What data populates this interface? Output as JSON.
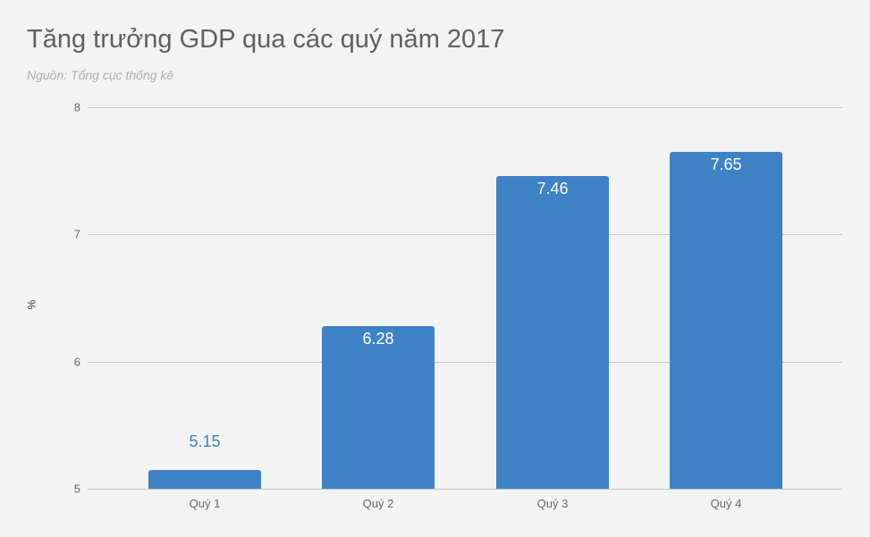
{
  "title": "Tăng trưởng GDP qua các quý năm 2017",
  "subtitle": "Nguồn: Tổng cục thống kê",
  "colors": {
    "bar": "#3d82c4",
    "background": "#f3f3f3",
    "grid": "#c6c6c6"
  },
  "chart_data": {
    "type": "bar",
    "title": "Tăng trưởng GDP qua các quý năm 2017",
    "subtitle": "Nguồn: Tổng cục thống kê",
    "categories": [
      "Quý 1",
      "Quý 2",
      "Quý 3",
      "Quý 4"
    ],
    "values": [
      5.15,
      6.28,
      7.46,
      7.65
    ],
    "value_labels": [
      "5.15",
      "6.28",
      "7.46",
      "7.65"
    ],
    "xlabel": "",
    "ylabel": "%",
    "ylim": [
      5,
      8
    ],
    "yticks": [
      "8",
      "7",
      "6",
      "5"
    ],
    "grid": true,
    "legend": "none"
  }
}
